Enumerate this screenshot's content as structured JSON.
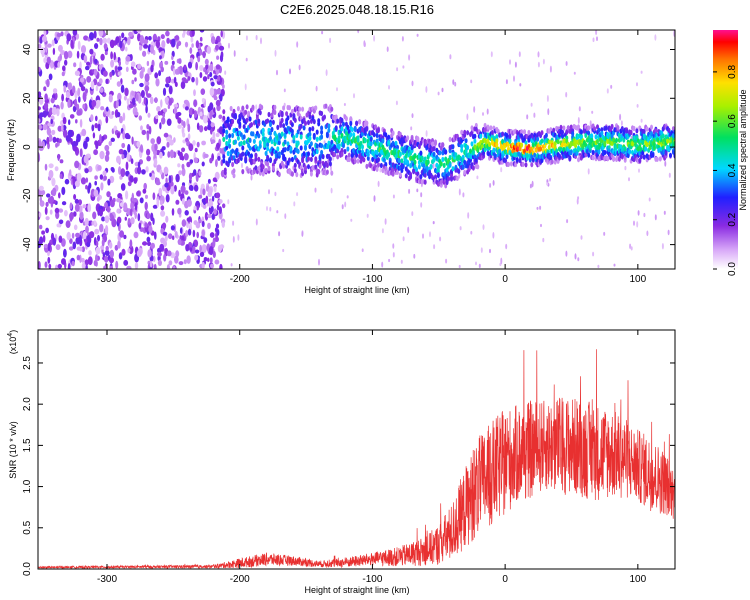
{
  "title": "C2E6.2025.048.18.15.R16",
  "chart_data": [
    {
      "type": "heatmap",
      "xlabel": "Height of straight line (km)",
      "ylabel": "Frequency (Hz)",
      "xlim": [
        -352,
        128
      ],
      "ylim": [
        -50,
        48
      ],
      "x_ticks": [
        -300,
        -200,
        -100,
        0,
        100
      ],
      "y_ticks": [
        -40,
        -20,
        0,
        20,
        40
      ],
      "colorbar": {
        "label": "Normalized spectral amplitude",
        "range": [
          0,
          0.97
        ],
        "ticks": [
          "0.0",
          "0.2",
          "0.4",
          "0.6",
          "0.8"
        ],
        "colormap": "rainbow"
      },
      "ridge": {
        "description_points_x": [
          -210,
          -180,
          -150,
          -120,
          -100,
          -80,
          -60,
          -45,
          -30,
          -15,
          0,
          20,
          40,
          60,
          80,
          100,
          125
        ],
        "description_points_y": [
          2,
          3,
          2,
          4,
          0,
          -3,
          -6,
          -7,
          -2,
          2,
          0,
          -1,
          1,
          2,
          2,
          1,
          2
        ]
      }
    },
    {
      "type": "line",
      "xlabel": "Height of straight line (km)",
      "ylabel": "SNR (10 * v/v)",
      "y_multiplier": "(x10",
      "y_multiplier_exp": "4",
      "y_multiplier_close": ")",
      "xlim": [
        -352,
        128
      ],
      "ylim": [
        0,
        2.9
      ],
      "x_ticks": [
        -300,
        -200,
        -100,
        0,
        100
      ],
      "y_ticks": [
        "0.0",
        "0.5",
        "1.0",
        "1.5",
        "2.0",
        "2.5"
      ],
      "color": "#e83030",
      "envelope_x": [
        -352,
        -220,
        -200,
        -180,
        -160,
        -140,
        -120,
        -100,
        -80,
        -60,
        -50,
        -40,
        -30,
        -20,
        -10,
        0,
        10,
        20,
        30,
        40,
        50,
        60,
        70,
        80,
        90,
        100,
        110,
        120,
        128
      ],
      "envelope_mean": [
        0.02,
        0.03,
        0.07,
        0.12,
        0.1,
        0.06,
        0.08,
        0.12,
        0.15,
        0.22,
        0.3,
        0.45,
        0.75,
        1.0,
        1.15,
        1.3,
        1.4,
        1.45,
        1.5,
        1.5,
        1.5,
        1.45,
        1.42,
        1.4,
        1.35,
        1.25,
        1.15,
        1.05,
        0.9
      ],
      "envelope_spread": [
        0.01,
        0.02,
        0.06,
        0.08,
        0.06,
        0.04,
        0.06,
        0.08,
        0.12,
        0.18,
        0.25,
        0.35,
        0.5,
        0.6,
        0.65,
        0.65,
        0.6,
        0.6,
        0.55,
        0.6,
        0.6,
        0.6,
        0.6,
        0.55,
        0.5,
        0.45,
        0.45,
        0.4,
        0.3
      ]
    }
  ]
}
